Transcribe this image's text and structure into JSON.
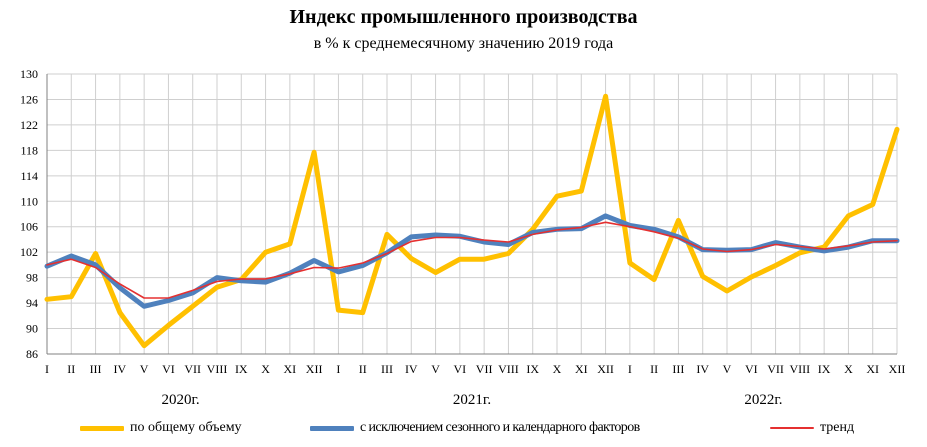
{
  "chart_data": {
    "type": "line",
    "title": "Индекс промышленного производства",
    "subtitle": "в % к среднемесячному значению 2019 года",
    "categories": [
      "I",
      "II",
      "III",
      "IV",
      "V",
      "VI",
      "VII",
      "VIII",
      "IX",
      "X",
      "XI",
      "XII",
      "I",
      "II",
      "III",
      "IV",
      "V",
      "VI",
      "VII",
      "VIII",
      "IX",
      "X",
      "XI",
      "XII",
      "I",
      "II",
      "III",
      "IV",
      "V",
      "VI",
      "VII",
      "VIII",
      "IX",
      "X",
      "XI",
      "XII"
    ],
    "year_labels": [
      "2020г.",
      "2021г.",
      "2022г."
    ],
    "ylim": [
      86,
      130
    ],
    "yticks": [
      86,
      90,
      94,
      98,
      102,
      106,
      110,
      114,
      118,
      122,
      126,
      130
    ],
    "grid": true,
    "legend_position": "bottom",
    "series": [
      {
        "name": "по общему объему",
        "color": "#FFC000",
        "values": [
          94.6,
          95.0,
          101.8,
          92.5,
          87.3,
          90.5,
          93.5,
          96.5,
          97.7,
          102.0,
          103.3,
          117.7,
          92.9,
          92.5,
          104.8,
          101.0,
          98.8,
          100.9,
          100.9,
          101.8,
          105.6,
          110.8,
          111.6,
          126.5,
          100.3,
          97.7,
          107.0,
          98.2,
          95.9,
          98.1,
          99.9,
          101.9,
          102.8,
          107.7,
          109.5,
          121.3
        ]
      },
      {
        "name": "с исключением сезонного и календарного факторов",
        "color": "#4F81BD",
        "values": [
          99.8,
          101.4,
          100.0,
          96.4,
          93.5,
          94.4,
          95.6,
          98.0,
          97.5,
          97.3,
          98.7,
          100.7,
          98.9,
          99.9,
          101.9,
          104.4,
          104.7,
          104.5,
          103.6,
          103.2,
          105.1,
          105.6,
          105.7,
          107.7,
          106.2,
          105.6,
          104.4,
          102.4,
          102.3,
          102.4,
          103.5,
          102.8,
          102.2,
          102.8,
          103.8,
          103.8
        ]
      },
      {
        "name": "тренд",
        "color": "#E53030",
        "values": [
          100.0,
          100.9,
          99.6,
          97.0,
          94.8,
          94.8,
          96.0,
          97.4,
          97.8,
          97.8,
          98.6,
          99.6,
          99.5,
          100.3,
          101.8,
          103.7,
          104.3,
          104.3,
          103.9,
          103.6,
          104.8,
          105.5,
          105.9,
          106.7,
          106.0,
          105.2,
          104.2,
          102.5,
          102.1,
          102.4,
          103.2,
          102.9,
          102.5,
          103.0,
          103.6,
          103.8
        ]
      }
    ]
  }
}
